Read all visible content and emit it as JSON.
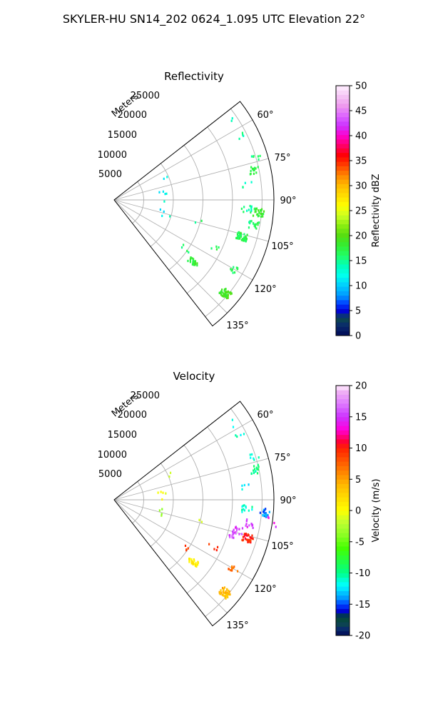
{
  "figure": {
    "suptitle": "SKYLER-HU  SN14_202  0624_1.095 UTC Elevation 22°"
  },
  "chart_data": [
    {
      "type": "heatmap",
      "projection": "polar-sector",
      "title": "Reflectivity",
      "range_label": "Meters",
      "radial_ticks": [
        "5000",
        "10000",
        "15000",
        "20000",
        "25000"
      ],
      "angle_ticks": [
        "60°",
        "75°",
        "90°",
        "105°",
        "120°",
        "135°"
      ],
      "r_range": [
        0,
        27000
      ],
      "azimuth_range_deg": [
        52,
        142
      ],
      "colorbar": {
        "label": "Reflectivity dBZ",
        "ticks": [
          "0",
          "5",
          "10",
          "15",
          "20",
          "25",
          "30",
          "35",
          "40",
          "45",
          "50"
        ],
        "range": [
          0,
          50
        ]
      },
      "gates": [
        {
          "az": 57,
          "r": 23500,
          "v": 14,
          "n": 2
        },
        {
          "az": 63,
          "r": 24000,
          "v": 15,
          "n": 4
        },
        {
          "az": 66,
          "r": 9800,
          "v": 11,
          "n": 2
        },
        {
          "az": 73,
          "r": 25000,
          "v": 15,
          "n": 6
        },
        {
          "az": 78,
          "r": 24200,
          "v": 17,
          "n": 14
        },
        {
          "az": 84,
          "r": 22500,
          "v": 14,
          "n": 4
        },
        {
          "az": 82,
          "r": 8200,
          "v": 12,
          "n": 4
        },
        {
          "az": 91,
          "r": 8500,
          "v": 13,
          "n": 1
        },
        {
          "az": 94,
          "r": 22500,
          "v": 15,
          "n": 12
        },
        {
          "az": 95,
          "r": 24500,
          "v": 18,
          "n": 26
        },
        {
          "az": 100,
          "r": 24000,
          "v": 16,
          "n": 16
        },
        {
          "az": 102,
          "r": 8000,
          "v": 9,
          "n": 2
        },
        {
          "az": 104,
          "r": 14500,
          "v": 16,
          "n": 2
        },
        {
          "az": 106,
          "r": 22500,
          "v": 17,
          "n": 46
        },
        {
          "az": 108,
          "r": 9200,
          "v": 13,
          "n": 2
        },
        {
          "az": 116,
          "r": 18500,
          "v": 17,
          "n": 4
        },
        {
          "az": 120,
          "r": 23200,
          "v": 16,
          "n": 10
        },
        {
          "az": 124,
          "r": 14800,
          "v": 16,
          "n": 4
        },
        {
          "az": 128,
          "r": 17000,
          "v": 18,
          "n": 24
        },
        {
          "az": 130,
          "r": 24500,
          "v": 19,
          "n": 40
        }
      ]
    },
    {
      "type": "heatmap",
      "projection": "polar-sector",
      "title": "Velocity",
      "range_label": "Meters",
      "radial_ticks": [
        "5000",
        "10000",
        "15000",
        "20000",
        "25000"
      ],
      "angle_ticks": [
        "60°",
        "75°",
        "90°",
        "105°",
        "120°",
        "135°"
      ],
      "r_range": [
        0,
        27000
      ],
      "azimuth_range_deg": [
        52,
        142
      ],
      "colorbar": {
        "label": "Velocity (m/s)",
        "ticks": [
          "-20",
          "-15",
          "-10",
          "-5",
          "0",
          "5",
          "10",
          "15",
          "20"
        ],
        "range": [
          -20,
          20
        ]
      },
      "gates": [
        {
          "az": 57,
          "r": 23500,
          "v": -11,
          "n": 2
        },
        {
          "az": 63,
          "r": 24000,
          "v": -11,
          "n": 4
        },
        {
          "az": 66,
          "r": 9800,
          "v": -2,
          "n": 2
        },
        {
          "az": 73,
          "r": 25000,
          "v": -11,
          "n": 6
        },
        {
          "az": 78,
          "r": 24200,
          "v": -10,
          "n": 14
        },
        {
          "az": 84,
          "r": 22500,
          "v": -12,
          "n": 4
        },
        {
          "az": 82,
          "r": 8200,
          "v": 0,
          "n": 4
        },
        {
          "az": 91,
          "r": 8500,
          "v": 0,
          "n": 1
        },
        {
          "az": 94,
          "r": 22500,
          "v": -11,
          "n": 12
        },
        {
          "az": 95,
          "r": 25500,
          "v": -14,
          "n": 18
        },
        {
          "az": 98,
          "r": 27000,
          "v": 14,
          "n": 4
        },
        {
          "az": 100,
          "r": 23500,
          "v": 15,
          "n": 10
        },
        {
          "az": 102,
          "r": 8000,
          "v": -3,
          "n": 2
        },
        {
          "az": 104,
          "r": 14500,
          "v": 0,
          "n": 2
        },
        {
          "az": 104,
          "r": 21500,
          "v": 15,
          "n": 12
        },
        {
          "az": 106,
          "r": 23500,
          "v": 10,
          "n": 30
        },
        {
          "az": 107,
          "r": 20500,
          "v": 16,
          "n": 10
        },
        {
          "az": 108,
          "r": 9200,
          "v": -3,
          "n": 2
        },
        {
          "az": 116,
          "r": 18500,
          "v": 9,
          "n": 4
        },
        {
          "az": 120,
          "r": 23200,
          "v": 7,
          "n": 10
        },
        {
          "az": 124,
          "r": 14800,
          "v": 9,
          "n": 4
        },
        {
          "az": 128,
          "r": 17000,
          "v": 1,
          "n": 24
        },
        {
          "az": 130,
          "r": 24500,
          "v": 4,
          "n": 40
        }
      ]
    }
  ]
}
